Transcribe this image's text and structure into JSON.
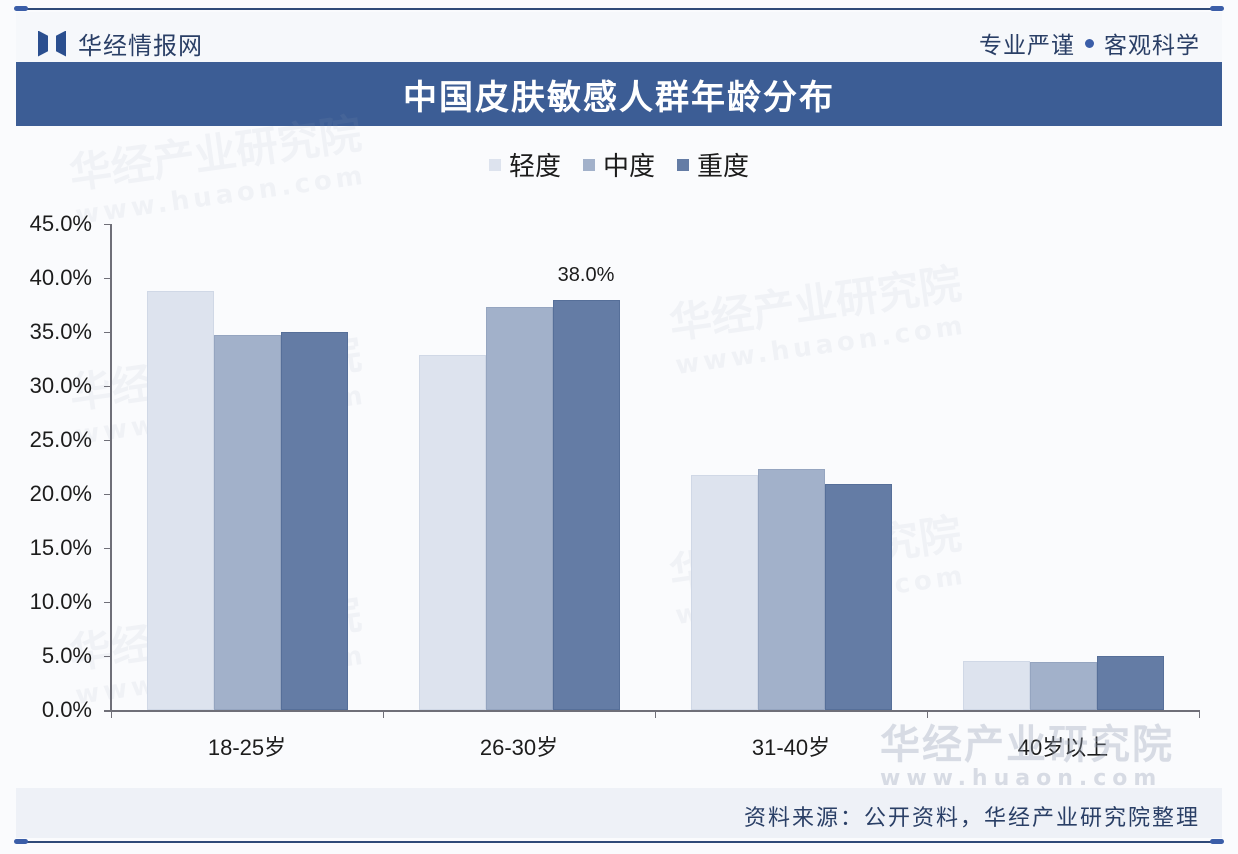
{
  "header": {
    "logo_text": "华经情报网",
    "logo_icon": "huajing-logo-icon",
    "slogan_left": "专业严谨",
    "slogan_right": "客观科学"
  },
  "title": "中国皮肤敏感人群年龄分布",
  "legend": [
    {
      "label": "轻度",
      "color": "#dde3ee"
    },
    {
      "label": "中度",
      "color": "#a2b1ca"
    },
    {
      "label": "重度",
      "color": "#647ca5"
    }
  ],
  "y_axis": {
    "ticks": [
      "0.0%",
      "5.0%",
      "10.0%",
      "15.0%",
      "20.0%",
      "25.0%",
      "30.0%",
      "35.0%",
      "40.0%",
      "45.0%"
    ]
  },
  "x_axis": {
    "categories": [
      "18-25岁",
      "26-30岁",
      "31-40岁",
      "40岁以上"
    ]
  },
  "annotation": "38.0%",
  "watermark": {
    "name": "华经产业研究院",
    "url": "www.huaon.com"
  },
  "source": "资料来源：公开资料，华经产业研究院整理",
  "chart_data": {
    "type": "bar",
    "title": "中国皮肤敏感人群年龄分布",
    "xlabel": "",
    "ylabel": "",
    "categories": [
      "18-25岁",
      "26-30岁",
      "31-40岁",
      "40岁以上"
    ],
    "series": [
      {
        "name": "轻度",
        "color": "#dde3ee",
        "values": [
          38.8,
          32.9,
          21.8,
          4.5
        ]
      },
      {
        "name": "中度",
        "color": "#a2b1ca",
        "values": [
          34.7,
          37.3,
          22.3,
          4.4
        ]
      },
      {
        "name": "重度",
        "color": "#647ca5",
        "values": [
          35.0,
          38.0,
          20.9,
          5.0
        ]
      }
    ],
    "ylim": [
      0,
      45
    ],
    "ytick_step": 5,
    "ytick_format": "0.0%",
    "grid": false,
    "legend_position": "top",
    "annotations": [
      {
        "category": "26-30岁",
        "series": "重度",
        "text": "38.0%"
      }
    ]
  }
}
